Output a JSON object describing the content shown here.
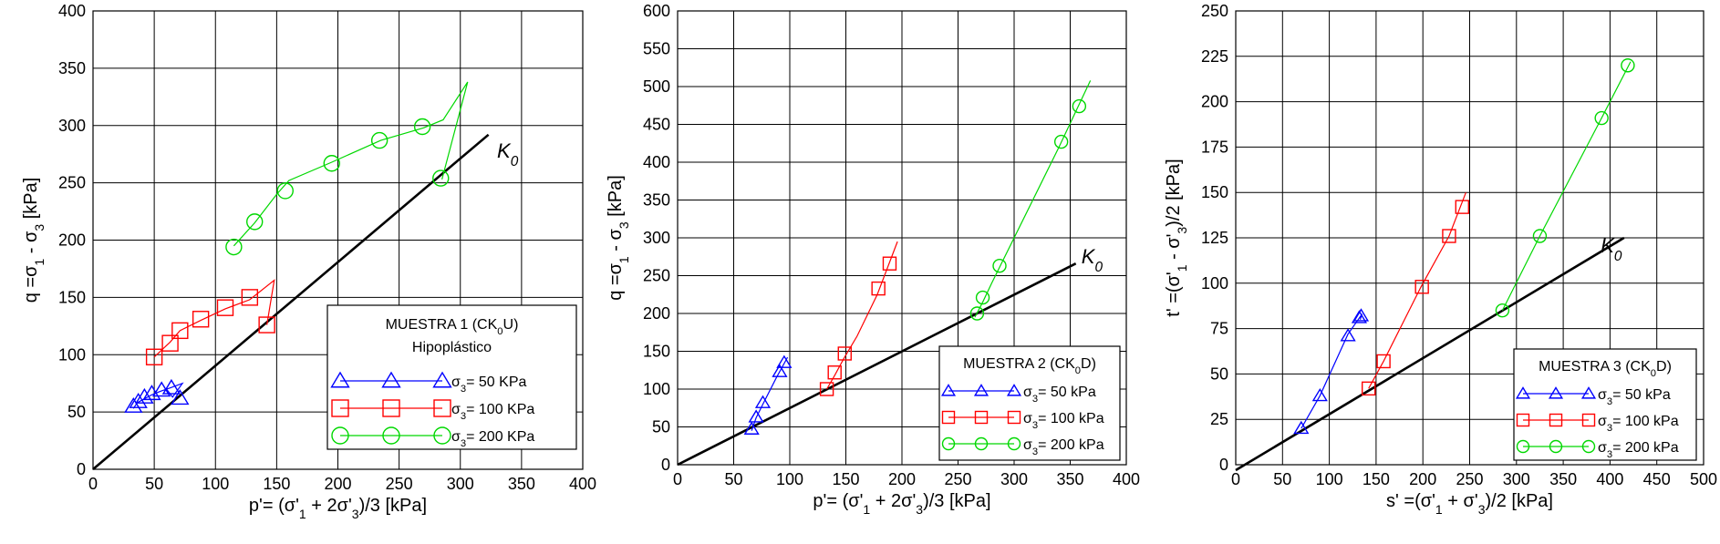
{
  "figure": {
    "panels": [
      {
        "id": "panel-1",
        "xlabel": "p'= (σ'₁ + 2σ'₃)/3 [kPa]",
        "ylabel": "q =σ₁ - σ₃ [kPa]",
        "xlim": [
          0,
          400
        ],
        "ylim": [
          0,
          400
        ],
        "xticks": [
          0,
          50,
          100,
          150,
          200,
          250,
          300,
          350,
          400
        ],
        "yticks": [
          0,
          50,
          100,
          150,
          200,
          250,
          300,
          350,
          400
        ],
        "k0_label": "K₀",
        "k0_line": {
          "x": [
            0,
            323
          ],
          "y": [
            0,
            292
          ]
        },
        "k0_label_pos": {
          "x": 330,
          "y": 272
        },
        "legend": {
          "title_lines": [
            "MUESTRA 1 (CK₀U)",
            "Hipoplástico"
          ],
          "position": "bottom-right"
        },
        "series": [
          {
            "name": "σ₃= 50 KPa",
            "marker": "triangle",
            "color": "#0000ff",
            "line_x": [
              33,
              36,
              41,
              48,
              55,
              63,
              73,
              65,
              60
            ],
            "line_y": [
              53,
              58,
              61,
              65,
              68,
              71,
              75,
              63,
              70
            ],
            "marker_x": [
              33,
              37,
              42,
              48,
              56,
              64,
              71
            ],
            "marker_y": [
              55,
              59,
              63,
              66,
              69,
              71,
              62
            ]
          },
          {
            "name": "σ₃= 100 KPa",
            "marker": "square",
            "color": "#ff0000",
            "line_x": [
              50,
              63,
              71,
              88,
              108,
              128,
              148,
              142
            ],
            "line_y": [
              98,
              111,
              121,
              130,
              140,
              148,
              165,
              126
            ],
            "marker_x": [
              50,
              63,
              71,
              88,
              108,
              128,
              142
            ],
            "marker_y": [
              98,
              110,
              121,
              131,
              141,
              150,
              126
            ]
          },
          {
            "name": "σ₃= 200 KPa",
            "marker": "circle",
            "color": "#00d800",
            "line_x": [
              115,
              132,
              150,
              160,
              195,
              235,
              270,
              286,
              306,
              285
            ],
            "line_y": [
              195,
              215,
              240,
              252,
              268,
              287,
              298,
              305,
              338,
              253
            ],
            "marker_x": [
              115,
              132,
              157,
              195,
              234,
              269,
              284
            ],
            "marker_y": [
              194,
              216,
              243,
              267,
              287,
              299,
              254
            ]
          }
        ]
      },
      {
        "id": "panel-2",
        "xlabel": "p'= (σ'₁ + 2σ'₃)/3 [kPa]",
        "ylabel": "q =σ₁ - σ₃ [kPa]",
        "xlim": [
          0,
          400
        ],
        "ylim": [
          0,
          600
        ],
        "xticks": [
          0,
          50,
          100,
          150,
          200,
          250,
          300,
          350,
          400
        ],
        "yticks": [
          0,
          50,
          100,
          150,
          200,
          250,
          300,
          350,
          400,
          450,
          500,
          550,
          600
        ],
        "k0_label": "K₀",
        "k0_line": {
          "x": [
            0,
            355
          ],
          "y": [
            0,
            266
          ]
        },
        "k0_label_pos": {
          "x": 360,
          "y": 266
        },
        "legend": {
          "title_lines": [
            "MUESTRA 2 (CK₀D)"
          ],
          "position": "bottom-right"
        },
        "series": [
          {
            "name": "σ₃= 50 kPa",
            "marker": "triangle",
            "color": "#0000ff",
            "line_x": [
              66,
              70,
              76,
              88,
              98
            ],
            "line_y": [
              45,
              62,
              80,
              115,
              142
            ],
            "marker_x": [
              66,
              70,
              76,
              91,
              95
            ],
            "marker_y": [
              47,
              63,
              82,
              123,
              135
            ]
          },
          {
            "name": "σ₃= 100 kPa",
            "marker": "square",
            "color": "#ff0000",
            "line_x": [
              133,
              140,
              148,
              160,
              178,
              196
            ],
            "line_y": [
              100,
              118,
              140,
              170,
              225,
              295
            ],
            "marker_x": [
              133,
              140,
              149,
              179,
              189
            ],
            "marker_y": [
              100,
              122,
              147,
              233,
              266
            ]
          },
          {
            "name": "σ₃= 200 kPa",
            "marker": "circle",
            "color": "#00d800",
            "line_x": [
              265,
              272,
              280,
              290,
              340,
              368
            ],
            "line_y": [
              195,
              215,
              240,
              270,
              420,
              508
            ],
            "marker_x": [
              267,
              272,
              287,
              342,
              358
            ],
            "marker_y": [
              200,
              221,
              263,
              427,
              474
            ]
          }
        ]
      },
      {
        "id": "panel-3",
        "xlabel": "s' =(σ'₁ + σ'₃)/2 [kPa]",
        "ylabel": "t' =(σ'₁ - σ'₃)/2 [kPa]",
        "xlim": [
          0,
          500
        ],
        "ylim": [
          0,
          250
        ],
        "xticks": [
          0,
          50,
          100,
          150,
          200,
          250,
          300,
          350,
          400,
          450,
          500
        ],
        "yticks": [
          0,
          25,
          50,
          75,
          100,
          125,
          150,
          175,
          200,
          225,
          250
        ],
        "k0_label": "K₀",
        "k0_line": {
          "x": [
            0,
            415
          ],
          "y": [
            -3,
            125
          ]
        },
        "k0_label_pos": {
          "x": 390,
          "y": 117
        },
        "legend": {
          "title_lines": [
            "MUESTRA 3 (CK₀D)"
          ],
          "position": "bottom-right"
        },
        "series": [
          {
            "name": "σ₃= 50 kPa",
            "marker": "triangle",
            "color": "#0000ff",
            "line_x": [
              70,
              90,
              120,
              135,
              133
            ],
            "line_y": [
              20,
              38,
              72,
              83,
              80
            ],
            "marker_x": [
              70,
              90,
              120,
              132,
              134
            ],
            "marker_y": [
              20,
              38,
              71,
              81,
              82
            ]
          },
          {
            "name": "σ₃= 100 kPa",
            "marker": "square",
            "color": "#ff0000",
            "line_x": [
              142,
              158,
              198,
              228,
              246
            ],
            "line_y": [
              42,
              57,
              98,
              126,
              150
            ],
            "marker_x": [
              142,
              158,
              199,
              228,
              242
            ],
            "marker_y": [
              42,
              57,
              98,
              126,
              142
            ]
          },
          {
            "name": "σ₃= 200 kPa",
            "marker": "circle",
            "color": "#00d800",
            "line_x": [
              285,
              325,
              390,
              422
            ],
            "line_y": [
              85,
              126,
              190,
              222
            ],
            "marker_x": [
              285,
              325,
              391,
              419
            ],
            "marker_y": [
              85,
              126,
              191,
              220
            ]
          }
        ]
      }
    ]
  }
}
